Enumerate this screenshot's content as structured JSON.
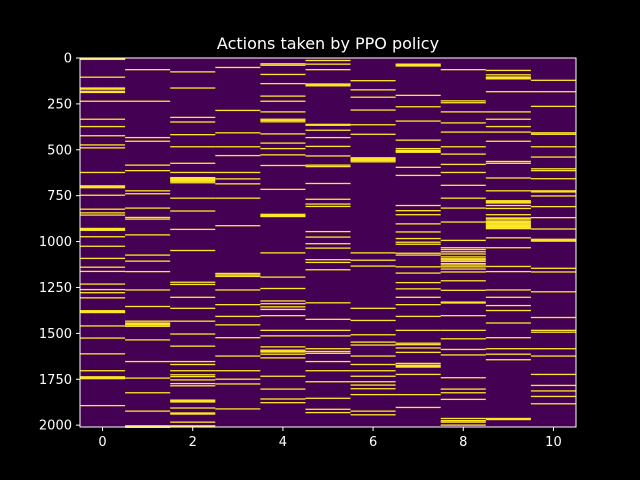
{
  "chart_data": {
    "type": "heatmap",
    "title": "Actions taken by PPO policy",
    "xlabel": "",
    "ylabel": "",
    "x_ticks": [
      "0",
      "2",
      "4",
      "6",
      "8",
      "10"
    ],
    "y_ticks": [
      "0",
      "250",
      "500",
      "750",
      "1000",
      "1250",
      "1500",
      "1750",
      "2000"
    ],
    "xlim": [
      -0.5,
      10.5
    ],
    "ylim": [
      2010,
      0
    ],
    "background_color": "#440154",
    "event_color": "#fde725",
    "columns": [
      {
        "action": 0,
        "steps": [
          2,
          3,
          4,
          101,
          160,
          166,
          178,
          184,
          232,
          330,
          370,
          420,
          470,
          486,
          620,
          693,
          698,
          703,
          744,
          820,
          840,
          852,
          925,
          930,
          935,
          970,
          1022,
          1088,
          1136,
          1159,
          1228,
          1258,
          1275,
          1303,
          1373,
          1378,
          1383,
          1456,
          1522,
          1608,
          1700,
          1733,
          1738,
          1743,
          1890
        ]
      },
      {
        "action": 1,
        "steps": [
          60,
          232,
          430,
          450,
          580,
          610,
          720,
          736,
          814,
          865,
          874,
          960,
          1070,
          1103,
          1160,
          1260,
          1350,
          1430,
          1440,
          1445,
          1450,
          1458,
          1532,
          1650,
          1740,
          1820,
          1920,
          2000,
          2004,
          2008
        ]
      },
      {
        "action": 2,
        "steps": [
          72,
          160,
          320,
          345,
          414,
          480,
          570,
          620,
          648,
          653,
          658,
          663,
          668,
          676,
          760,
          830,
          930,
          1045,
          1218,
          1230,
          1300,
          1360,
          1430,
          1500,
          1566,
          1650,
          1666,
          1700,
          1722,
          1732,
          1750,
          1770,
          1782,
          1860,
          1865,
          1870,
          1903,
          1930,
          1936,
          1980,
          2000,
          2006
        ]
      },
      {
        "action": 3,
        "steps": [
          48,
          282,
          404,
          480,
          528,
          620,
          655,
          682,
          760,
          910,
          1170,
          1178,
          1186,
          1260,
          1340,
          1404,
          1450,
          1520,
          1620,
          1700,
          1746,
          1772,
          1908
        ]
      },
      {
        "action": 4,
        "steps": [
          28,
          36,
          86,
          136,
          204,
          232,
          290,
          330,
          336,
          344,
          410,
          460,
          490,
          524,
          582,
          712,
          848,
          854,
          860,
          1058,
          1190,
          1252,
          1320,
          1335,
          1352,
          1366,
          1400,
          1480,
          1510,
          1570,
          1588,
          1593,
          1598,
          1610,
          1630,
          1730,
          1800,
          1854,
          1874
        ]
      },
      {
        "action": 5,
        "steps": [
          10,
          30,
          60,
          138,
          143,
          148,
          358,
          363,
          390,
          430,
          478,
          530,
          580,
          588,
          680,
          766,
          792,
          805,
          942,
          972,
          1008,
          1032,
          1095,
          1110,
          1150,
          1330,
          1420,
          1480,
          1510,
          1580,
          1595,
          1605,
          1650,
          1700,
          1760,
          1850,
          1910,
          1928
        ]
      },
      {
        "action": 6,
        "steps": [
          120,
          170,
          210,
          280,
          360,
          412,
          540,
          545,
          550,
          555,
          562,
          1058,
          1098,
          1130,
          1360,
          1426,
          1504,
          1544,
          1560,
          1620,
          1666,
          1700,
          1730,
          1760,
          1778,
          1798,
          1830,
          1920,
          1940
        ]
      },
      {
        "action": 7,
        "steps": [
          30,
          35,
          40,
          200,
          262,
          340,
          444,
          490,
          500,
          505,
          510,
          592,
          636,
          800,
          828,
          850,
          900,
          944,
          980,
          1000,
          1011,
          1060,
          1070,
          1134,
          1168,
          1220,
          1254,
          1300,
          1340,
          1404,
          1480,
          1550,
          1558,
          1576,
          1600,
          1660,
          1670,
          1675,
          1680,
          1720,
          1830,
          1900
        ]
      },
      {
        "action": 8,
        "steps": [
          60,
          230,
          240,
          290,
          350,
          400,
          480,
          520,
          576,
          620,
          690,
          760,
          814,
          890,
          990,
          1030,
          1040,
          1052,
          1064,
          1080,
          1090,
          1096,
          1104,
          1116,
          1124,
          1134,
          1146,
          1162,
          1210,
          1262,
          1326,
          1331,
          1400,
          1480,
          1526,
          1584,
          1614,
          1738,
          1800,
          1820,
          1856,
          1960,
          1972,
          1980,
          1996
        ]
      },
      {
        "action": 9,
        "steps": [
          64,
          88,
          100,
          105,
          110,
          180,
          290,
          330,
          370,
          400,
          450,
          560,
          570,
          650,
          720,
          774,
          780,
          786,
          800,
          816,
          850,
          868,
          874,
          884,
          890,
          896,
          902,
          908,
          914,
          920,
          926,
          976,
          1030,
          1132,
          1160,
          1260,
          1300,
          1345,
          1372,
          1440,
          1520,
          1580,
          1610,
          1640,
          1960,
          1966
        ]
      },
      {
        "action": 10,
        "steps": [
          118,
          180,
          260,
          404,
          412,
          480,
          536,
          600,
          610,
          654,
          720,
          726,
          748,
          806,
          866,
          928,
          984,
          989,
          994,
          1142,
          1162,
          1270,
          1410,
          1480,
          1490,
          1580,
          1620,
          1720,
          1780,
          1810,
          1840,
          1880
        ]
      }
    ]
  }
}
